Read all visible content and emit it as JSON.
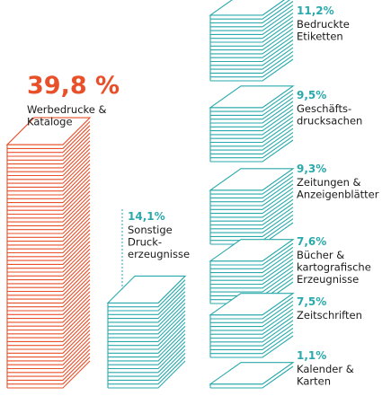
{
  "chart_data": {
    "type": "bar",
    "title": "",
    "unit": "%",
    "colors": {
      "orange": "#e8502a",
      "teal": "#2aa9ac",
      "text": "#1a1a1a"
    },
    "categories": [
      {
        "value_text": "39,8 %",
        "value": 39.8,
        "label_lines": [
          "Werbedrucke &",
          "Kataloge"
        ],
        "color": "#e8502a"
      },
      {
        "value_text": "14,1%",
        "value": 14.1,
        "label_lines": [
          "Sonstige",
          "Druck-",
          "erzeugnisse"
        ],
        "color": "#2aa9ac"
      },
      {
        "value_text": "11,2%",
        "value": 11.2,
        "label_lines": [
          "Bedruckte",
          "Etiketten"
        ],
        "color": "#2aa9ac"
      },
      {
        "value_text": "9,5%",
        "value": 9.5,
        "label_lines": [
          "Geschäfts-",
          "drucksachen"
        ],
        "color": "#2aa9ac"
      },
      {
        "value_text": "9,3%",
        "value": 9.3,
        "label_lines": [
          "Zeitungen &",
          "Anzeigenblätter"
        ],
        "color": "#2aa9ac"
      },
      {
        "value_text": "7,6%",
        "value": 7.6,
        "label_lines": [
          "Bücher &",
          "kartografische",
          "Erzeugnisse"
        ],
        "color": "#2aa9ac"
      },
      {
        "value_text": "7,5%",
        "value": 7.5,
        "label_lines": [
          "Zeitschriften"
        ],
        "color": "#2aa9ac"
      },
      {
        "value_text": "1,1%",
        "value": 1.1,
        "label_lines": [
          "Kalender &",
          "Karten"
        ],
        "color": "#2aa9ac"
      }
    ]
  }
}
